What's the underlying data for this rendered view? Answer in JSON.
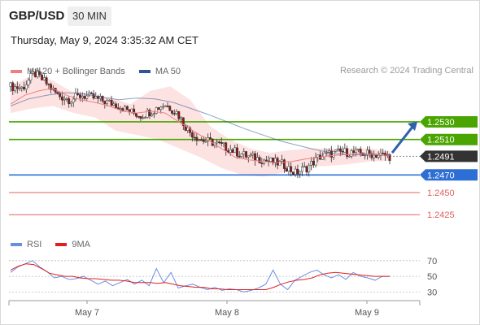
{
  "header": {
    "symbol": "GBP/USD",
    "timeframe": "30 MIN"
  },
  "timestamp": "Thursday, May 9, 2024 3:35:32 AM CET",
  "credit": "Research © 2024 Trading Central",
  "legend": [
    {
      "label": "MA 20 + Bollinger Bands",
      "color": "#f08080"
    },
    {
      "label": "MA 50",
      "color": "#2f5597"
    }
  ],
  "rsi_legend": [
    {
      "label": "RSI",
      "color": "#6b8de3"
    },
    {
      "label": "9MA",
      "color": "#e02020"
    }
  ],
  "colors": {
    "resistance": "#4aa500",
    "pivot": "#2e6fd6",
    "support": "#e06060",
    "current": "#333333",
    "candle_up": "#ffffff",
    "candle_down": "#8b1a1a",
    "candle_border": "#333333",
    "band_fill": "#fde2e2",
    "arrow": "#2f5fae"
  },
  "chart_data": [
    {
      "type": "candlestick",
      "title": "",
      "price_range": [
        1.2405,
        1.2575
      ],
      "x_ticks": [
        "May 7",
        "May 8",
        "May 9"
      ],
      "levels": [
        {
          "value": 1.253,
          "label": "1.2530",
          "kind": "resistance"
        },
        {
          "value": 1.251,
          "label": "1.2510",
          "kind": "resistance"
        },
        {
          "value": 1.2491,
          "label": "1.2491",
          "kind": "current"
        },
        {
          "value": 1.247,
          "label": "1.2470",
          "kind": "pivot"
        },
        {
          "value": 1.245,
          "label": "1.2450",
          "kind": "support"
        },
        {
          "value": 1.2425,
          "label": "1.2425",
          "kind": "support"
        }
      ],
      "close_anchors": [
        1.257,
        1.2568,
        1.2585,
        1.2574,
        1.256,
        1.2555,
        1.256,
        1.2557,
        1.2553,
        1.2549,
        1.2542,
        1.2537,
        1.2543,
        1.255,
        1.2541,
        1.252,
        1.251,
        1.2507,
        1.2502,
        1.2496,
        1.2491,
        1.2488,
        1.2485,
        1.2482,
        1.2472,
        1.2478,
        1.249,
        1.2494,
        1.2496,
        1.2495,
        1.2494,
        1.2493,
        1.2491
      ],
      "ma20": [
        1.255,
        1.256,
        1.2565,
        1.2568,
        1.256,
        1.2555,
        1.2552,
        1.2548,
        1.2542,
        1.254,
        1.2542,
        1.254,
        1.253,
        1.252,
        1.251,
        1.25,
        1.249,
        1.2487,
        1.2485,
        1.2484,
        1.2485,
        1.2488,
        1.249,
        1.2492,
        1.2493,
        1.2494,
        1.2493,
        1.2492
      ],
      "ma50": [
        1.2548,
        1.2556,
        1.256,
        1.2563,
        1.2562,
        1.2558,
        1.2555,
        1.2557,
        1.2556,
        1.2552,
        1.2545,
        1.2538,
        1.253,
        1.2522,
        1.2515,
        1.2508,
        1.2503,
        1.2498,
        1.2494,
        1.2493,
        1.2492,
        1.2492
      ],
      "bollinger_upper": [
        1.257,
        1.2582,
        1.2578,
        1.2565,
        1.256,
        1.2558,
        1.255,
        1.2565,
        1.257,
        1.2555,
        1.2525,
        1.251,
        1.25,
        1.2495,
        1.2498,
        1.25,
        1.25,
        1.25,
        1.25,
        1.2497
      ],
      "bollinger_lower": [
        1.254,
        1.2545,
        1.2548,
        1.254,
        1.2535,
        1.252,
        1.2515,
        1.251,
        1.25,
        1.249,
        1.2478,
        1.247,
        1.2468,
        1.2473,
        1.248,
        1.248,
        1.2482,
        1.2485,
        1.2486
      ],
      "forecast_arrow": {
        "from": 1.2495,
        "to": 1.253
      }
    },
    {
      "type": "line",
      "title": "",
      "name": "RSI",
      "ylim": [
        20,
        75
      ],
      "y_ticks": [
        70,
        50,
        30
      ],
      "rsi": [
        55,
        62,
        66,
        70,
        62,
        56,
        48,
        50,
        46,
        47,
        50,
        45,
        40,
        44,
        38,
        42,
        46,
        40,
        45,
        38,
        60,
        42,
        55,
        35,
        38,
        40,
        36,
        33,
        36,
        32,
        34,
        33,
        30,
        32,
        35,
        40,
        58,
        40,
        33,
        45,
        50,
        55,
        58,
        52,
        48,
        52,
        46,
        55,
        50,
        48,
        45,
        50,
        50
      ],
      "ma9": [
        58,
        63,
        66,
        65,
        60,
        54,
        52,
        50,
        50,
        48,
        47,
        47,
        46,
        45,
        45,
        44,
        42,
        42,
        42,
        41,
        42,
        40,
        38,
        37,
        36,
        36,
        34,
        34,
        33,
        33,
        33,
        33,
        33,
        33,
        36,
        40,
        43,
        45,
        46,
        48,
        52,
        54,
        55,
        54,
        53,
        52,
        51,
        50,
        50,
        50
      ]
    }
  ]
}
